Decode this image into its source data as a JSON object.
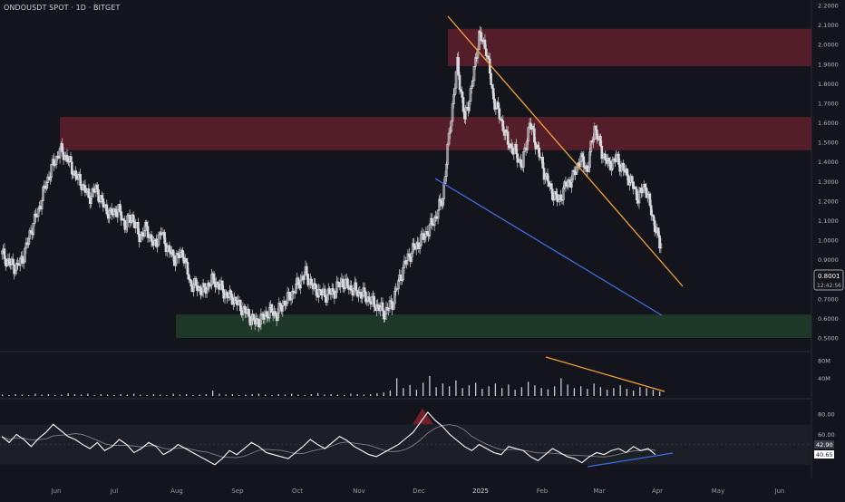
{
  "header": {
    "symbol_line": "ONDOUSDT SPOT · 1D · BITGET"
  },
  "colors": {
    "background": "#14151c",
    "candle": "#d8d9de",
    "resistance_zone": "#5a1f2b",
    "support_zone": "#1e3b2a",
    "downtrend_line": "#f4a23a",
    "support_line": "#3d6fe0",
    "rsi_line": "#ffffff",
    "rsi_ma": "#808080",
    "rsi_peak": "#8b2230"
  },
  "chart_data": [
    {
      "type": "candlestick",
      "title": "ONDOUSDT SPOT · 1D · BITGET",
      "y_ticks": [
        "2.2000",
        "2.1000",
        "2.0000",
        "1.9000",
        "1.8000",
        "1.7000",
        "1.6000",
        "1.5000",
        "1.4000",
        "1.3000",
        "1.2000",
        "1.1000",
        "1.0000",
        "0.9000",
        "0.7000",
        "0.6000",
        "0.5000"
      ],
      "ylim": [
        0.5,
        2.2
      ],
      "x_ticks": [
        "Jun",
        "Jul",
        "Aug",
        "Sep",
        "Oct",
        "Nov",
        "Dec",
        "2025",
        "Feb",
        "Mar",
        "Apr",
        "May",
        "Jun"
      ],
      "price_label": {
        "value": "0.8001",
        "countdown": "12:42:56"
      },
      "close_series": [
        [
          0,
          0.93
        ],
        [
          6,
          0.88
        ],
        [
          12,
          0.86
        ],
        [
          18,
          0.92
        ],
        [
          24,
          1.05
        ],
        [
          30,
          1.15
        ],
        [
          36,
          1.28
        ],
        [
          42,
          1.38
        ],
        [
          48,
          1.46
        ],
        [
          54,
          1.42
        ],
        [
          60,
          1.34
        ],
        [
          66,
          1.29
        ],
        [
          72,
          1.22
        ],
        [
          78,
          1.26
        ],
        [
          84,
          1.18
        ],
        [
          90,
          1.13
        ],
        [
          96,
          1.16
        ],
        [
          102,
          1.08
        ],
        [
          108,
          1.12
        ],
        [
          114,
          1.02
        ],
        [
          120,
          1.06
        ],
        [
          126,
          0.97
        ],
        [
          132,
          1.04
        ],
        [
          138,
          0.95
        ],
        [
          144,
          0.9
        ],
        [
          150,
          0.94
        ],
        [
          156,
          0.78
        ],
        [
          162,
          0.76
        ],
        [
          168,
          0.74
        ],
        [
          174,
          0.8
        ],
        [
          180,
          0.77
        ],
        [
          186,
          0.72
        ],
        [
          192,
          0.7
        ],
        [
          198,
          0.66
        ],
        [
          204,
          0.62
        ],
        [
          210,
          0.58
        ],
        [
          216,
          0.6
        ],
        [
          222,
          0.64
        ],
        [
          228,
          0.62
        ],
        [
          234,
          0.68
        ],
        [
          240,
          0.72
        ],
        [
          246,
          0.78
        ],
        [
          252,
          0.83
        ],
        [
          258,
          0.76
        ],
        [
          264,
          0.73
        ],
        [
          270,
          0.72
        ],
        [
          276,
          0.74
        ],
        [
          282,
          0.79
        ],
        [
          288,
          0.76
        ],
        [
          294,
          0.74
        ],
        [
          300,
          0.72
        ],
        [
          306,
          0.69
        ],
        [
          312,
          0.66
        ],
        [
          318,
          0.63
        ],
        [
          324,
          0.68
        ],
        [
          330,
          0.8
        ],
        [
          336,
          0.9
        ],
        [
          342,
          0.96
        ],
        [
          348,
          1.0
        ],
        [
          354,
          1.05
        ],
        [
          360,
          1.12
        ],
        [
          366,
          1.22
        ],
        [
          372,
          1.58
        ],
        [
          378,
          1.9
        ],
        [
          384,
          1.62
        ],
        [
          390,
          1.78
        ],
        [
          396,
          2.05
        ],
        [
          402,
          1.98
        ],
        [
          408,
          1.72
        ],
        [
          414,
          1.62
        ],
        [
          420,
          1.5
        ],
        [
          426,
          1.45
        ],
        [
          432,
          1.38
        ],
        [
          438,
          1.6
        ],
        [
          444,
          1.48
        ],
        [
          450,
          1.35
        ],
        [
          456,
          1.25
        ],
        [
          462,
          1.2
        ],
        [
          468,
          1.28
        ],
        [
          474,
          1.32
        ],
        [
          480,
          1.42
        ],
        [
          486,
          1.36
        ],
        [
          492,
          1.58
        ],
        [
          498,
          1.45
        ],
        [
          504,
          1.38
        ],
        [
          510,
          1.42
        ],
        [
          516,
          1.36
        ],
        [
          522,
          1.3
        ],
        [
          528,
          1.22
        ],
        [
          534,
          1.28
        ],
        [
          540,
          1.12
        ],
        [
          546,
          0.98
        ],
        [
          552,
          1.05
        ],
        [
          558,
          1.2
        ],
        [
          564,
          1.05
        ],
        [
          570,
          0.92
        ],
        [
          576,
          0.85
        ],
        [
          582,
          0.88
        ],
        [
          588,
          0.82
        ],
        [
          594,
          0.85
        ],
        [
          600,
          0.86
        ],
        [
          606,
          0.9
        ],
        [
          612,
          0.88
        ],
        [
          618,
          0.92
        ],
        [
          624,
          0.85
        ],
        [
          630,
          0.8
        ]
      ],
      "zones": [
        {
          "name": "resistance-upper",
          "from": 1.89,
          "to": 2.08
        },
        {
          "name": "resistance-lower",
          "from": 1.46,
          "to": 1.63
        },
        {
          "name": "support",
          "from": 0.5,
          "to": 0.62
        }
      ]
    },
    {
      "type": "bar",
      "title": "Volume",
      "y_ticks": [
        "80M",
        "40M"
      ],
      "ylim": [
        0,
        90
      ],
      "values": [
        3,
        2,
        4,
        3,
        2,
        5,
        3,
        4,
        2,
        3,
        6,
        4,
        3,
        5,
        2,
        4,
        3,
        2,
        4,
        3,
        5,
        3,
        2,
        4,
        3,
        2,
        5,
        3,
        4,
        2,
        3,
        4,
        12,
        5,
        3,
        4,
        2,
        3,
        4,
        5,
        3,
        2,
        4,
        3,
        5,
        3,
        2,
        4,
        6,
        3,
        4,
        3,
        2,
        5,
        4,
        3,
        4,
        6,
        8,
        12,
        40,
        18,
        25,
        14,
        30,
        45,
        20,
        28,
        22,
        35,
        18,
        24,
        30,
        16,
        22,
        28,
        18,
        26,
        14,
        20,
        32,
        24,
        18,
        15,
        22,
        40,
        26,
        18,
        22,
        16,
        28,
        20,
        14,
        18,
        24,
        16,
        12,
        20,
        18,
        14,
        10
      ]
    },
    {
      "type": "line",
      "title": "RSI",
      "y_ticks": [
        "80.00",
        "60.00",
        "40.65"
      ],
      "ylim": [
        20,
        90
      ],
      "rsi_labels": [
        "42.90",
        "40.65"
      ],
      "values": [
        58,
        52,
        60,
        55,
        48,
        56,
        62,
        70,
        64,
        58,
        55,
        50,
        46,
        52,
        44,
        48,
        55,
        50,
        42,
        46,
        52,
        48,
        40,
        44,
        50,
        46,
        42,
        38,
        34,
        30,
        36,
        44,
        40,
        46,
        52,
        48,
        42,
        40,
        38,
        36,
        42,
        48,
        55,
        50,
        46,
        52,
        58,
        54,
        48,
        44,
        40,
        38,
        42,
        46,
        50,
        56,
        62,
        72,
        82,
        74,
        68,
        60,
        54,
        48,
        44,
        50,
        46,
        42,
        40,
        48,
        46,
        44,
        38,
        34,
        40,
        46,
        42,
        38,
        36,
        32,
        38,
        42,
        40,
        44,
        46,
        42,
        48,
        44,
        46,
        40
      ]
    }
  ]
}
